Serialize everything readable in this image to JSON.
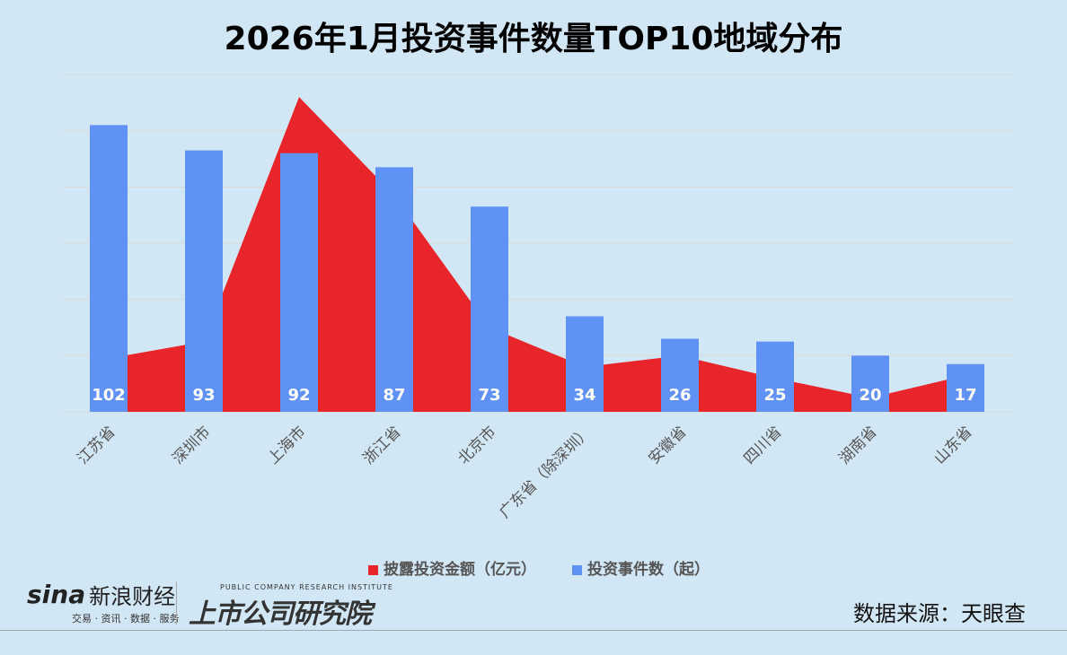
{
  "chart_data": {
    "type": "bar",
    "title": "2026年1月投资事件数量TOP10地域分布",
    "categories": [
      "江苏省",
      "深圳市",
      "上海市",
      "浙江省",
      "北京市",
      "广东省（除深圳）",
      "安徽省",
      "四川省",
      "湖南省",
      "山东省"
    ],
    "series": [
      {
        "name": "投资事件数（起）",
        "type": "bar",
        "color": "#6092f6",
        "values": [
          102,
          93,
          92,
          87,
          73,
          34,
          26,
          25,
          20,
          17
        ],
        "data_labels": true
      },
      {
        "name": "披露投资金额（亿元）",
        "type": "area",
        "color": "#e8252a",
        "values": [
          19,
          25,
          112,
          77,
          30,
          16,
          20,
          12,
          5,
          13
        ],
        "data_labels": false
      }
    ],
    "ylim": [
      0,
      120
    ],
    "grid": true,
    "y_axis_visible": false,
    "legend_position": "bottom"
  },
  "footer": {
    "source": "数据来源：天眼查",
    "sina_logo": "sina新浪财经",
    "sina_sub": "交易 · 资讯 · 数据 · 服务",
    "institute_en": "PUBLIC COMPANY RESEARCH INSTITUTE",
    "institute_cn": "上市公司研究院"
  }
}
